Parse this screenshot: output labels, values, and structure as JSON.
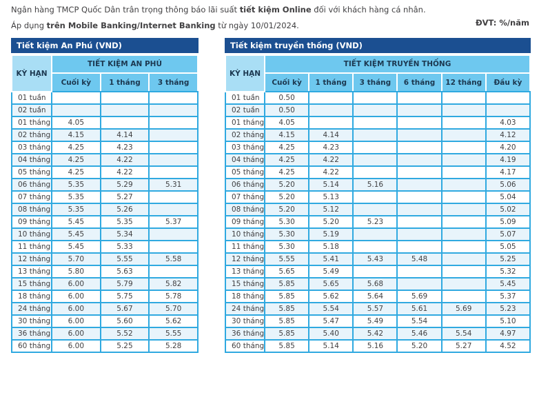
{
  "page": {
    "intro_line1_pre": "Ngân hàng TMCP Quốc Dân trân trọng thông báo lãi suất ",
    "intro_line1_bold": "tiết kiệm Online",
    "intro_line1_post": " đối với khách hàng cá nhân.",
    "intro_line2_pre": "Áp dụng ",
    "intro_line2_bold": "trên Mobile Banking/Internet Banking",
    "intro_line2_post": " từ ngày 10/01/2024.",
    "unit_label": "ĐVT: %/năm"
  },
  "colors": {
    "title_bar": "#1b4f91",
    "header_blue": "#6ec8ef",
    "header_light_blue": "#a9def5",
    "border_cyan": "#2fa9e0",
    "zebra_row": "#e8f4fb",
    "text": "#414042"
  },
  "tables": [
    {
      "title": "Tiết kiệm An Phú (VND)",
      "term_header": "KỲ HẠN",
      "group_header": "TIẾT KIỆM AN PHÚ",
      "sub_headers": [
        "Cuối kỳ",
        "1 tháng",
        "3 tháng"
      ],
      "rows": [
        {
          "term": "01 tuần",
          "values": [
            "",
            "",
            ""
          ]
        },
        {
          "term": "02 tuần",
          "values": [
            "",
            "",
            ""
          ]
        },
        {
          "term": "01 tháng",
          "values": [
            "4.05",
            "",
            ""
          ]
        },
        {
          "term": "02 tháng",
          "values": [
            "4.15",
            "4.14",
            ""
          ]
        },
        {
          "term": "03 tháng",
          "values": [
            "4.25",
            "4.23",
            ""
          ]
        },
        {
          "term": "04 tháng",
          "values": [
            "4.25",
            "4.22",
            ""
          ]
        },
        {
          "term": "05 tháng",
          "values": [
            "4.25",
            "4.22",
            ""
          ]
        },
        {
          "term": "06 tháng",
          "values": [
            "5.35",
            "5.29",
            "5.31"
          ]
        },
        {
          "term": "07 tháng",
          "values": [
            "5.35",
            "5.27",
            ""
          ]
        },
        {
          "term": "08 tháng",
          "values": [
            "5.35",
            "5.26",
            ""
          ]
        },
        {
          "term": "09 tháng",
          "values": [
            "5.45",
            "5.35",
            "5.37"
          ]
        },
        {
          "term": "10 tháng",
          "values": [
            "5.45",
            "5.34",
            ""
          ]
        },
        {
          "term": "11 tháng",
          "values": [
            "5.45",
            "5.33",
            ""
          ]
        },
        {
          "term": "12 tháng",
          "values": [
            "5.70",
            "5.55",
            "5.58"
          ]
        },
        {
          "term": "13 tháng",
          "values": [
            "5.80",
            "5.63",
            ""
          ]
        },
        {
          "term": "15 tháng",
          "values": [
            "6.00",
            "5.79",
            "5.82"
          ]
        },
        {
          "term": "18 tháng",
          "values": [
            "6.00",
            "5.75",
            "5.78"
          ]
        },
        {
          "term": "24 tháng",
          "values": [
            "6.00",
            "5.67",
            "5.70"
          ]
        },
        {
          "term": "30 tháng",
          "values": [
            "6.00",
            "5.60",
            "5.62"
          ]
        },
        {
          "term": "36 tháng",
          "values": [
            "6.00",
            "5.52",
            "5.55"
          ]
        },
        {
          "term": "60 tháng",
          "values": [
            "6.00",
            "5.25",
            "5.28"
          ]
        }
      ]
    },
    {
      "title": "Tiết kiệm truyền thống (VND)",
      "term_header": "KỲ HẠN",
      "group_header": "TIẾT KIỆM TRUYỀN THỐNG",
      "sub_headers": [
        "Cuối kỳ",
        "1 tháng",
        "3 tháng",
        "6 tháng",
        "12 tháng",
        "Đầu kỳ"
      ],
      "rows": [
        {
          "term": "01 tuần",
          "values": [
            "0.50",
            "",
            "",
            "",
            "",
            ""
          ]
        },
        {
          "term": "02 tuần",
          "values": [
            "0.50",
            "",
            "",
            "",
            "",
            ""
          ]
        },
        {
          "term": "01 tháng",
          "values": [
            "4.05",
            "",
            "",
            "",
            "",
            "4.03"
          ]
        },
        {
          "term": "02 tháng",
          "values": [
            "4.15",
            "4.14",
            "",
            "",
            "",
            "4.12"
          ]
        },
        {
          "term": "03 tháng",
          "values": [
            "4.25",
            "4.23",
            "",
            "",
            "",
            "4.20"
          ]
        },
        {
          "term": "04 tháng",
          "values": [
            "4.25",
            "4.22",
            "",
            "",
            "",
            "4.19"
          ]
        },
        {
          "term": "05 tháng",
          "values": [
            "4.25",
            "4.22",
            "",
            "",
            "",
            "4.17"
          ]
        },
        {
          "term": "06 tháng",
          "values": [
            "5.20",
            "5.14",
            "5.16",
            "",
            "",
            "5.06"
          ]
        },
        {
          "term": "07 tháng",
          "values": [
            "5.20",
            "5.13",
            "",
            "",
            "",
            "5.04"
          ]
        },
        {
          "term": "08 tháng",
          "values": [
            "5.20",
            "5.12",
            "",
            "",
            "",
            "5.02"
          ]
        },
        {
          "term": "09 tháng",
          "values": [
            "5.30",
            "5.20",
            "5.23",
            "",
            "",
            "5.09"
          ]
        },
        {
          "term": "10 tháng",
          "values": [
            "5.30",
            "5.19",
            "",
            "",
            "",
            "5.07"
          ]
        },
        {
          "term": "11 tháng",
          "values": [
            "5.30",
            "5.18",
            "",
            "",
            "",
            "5.05"
          ]
        },
        {
          "term": "12 tháng",
          "values": [
            "5.55",
            "5.41",
            "5.43",
            "5.48",
            "",
            "5.25"
          ]
        },
        {
          "term": "13 tháng",
          "values": [
            "5.65",
            "5.49",
            "",
            "",
            "",
            "5.32"
          ]
        },
        {
          "term": "15 tháng",
          "values": [
            "5.85",
            "5.65",
            "5.68",
            "",
            "",
            "5.45"
          ]
        },
        {
          "term": "18 tháng",
          "values": [
            "5.85",
            "5.62",
            "5.64",
            "5.69",
            "",
            "5.37"
          ]
        },
        {
          "term": "24 tháng",
          "values": [
            "5.85",
            "5.54",
            "5.57",
            "5.61",
            "5.69",
            "5.23"
          ]
        },
        {
          "term": "30 tháng",
          "values": [
            "5.85",
            "5.47",
            "5.49",
            "5.54",
            "",
            "5.10"
          ]
        },
        {
          "term": "36 tháng",
          "values": [
            "5.85",
            "5.40",
            "5.42",
            "5.46",
            "5.54",
            "4.97"
          ]
        },
        {
          "term": "60 tháng",
          "values": [
            "5.85",
            "5.14",
            "5.16",
            "5.20",
            "5.27",
            "4.52"
          ]
        }
      ]
    }
  ]
}
